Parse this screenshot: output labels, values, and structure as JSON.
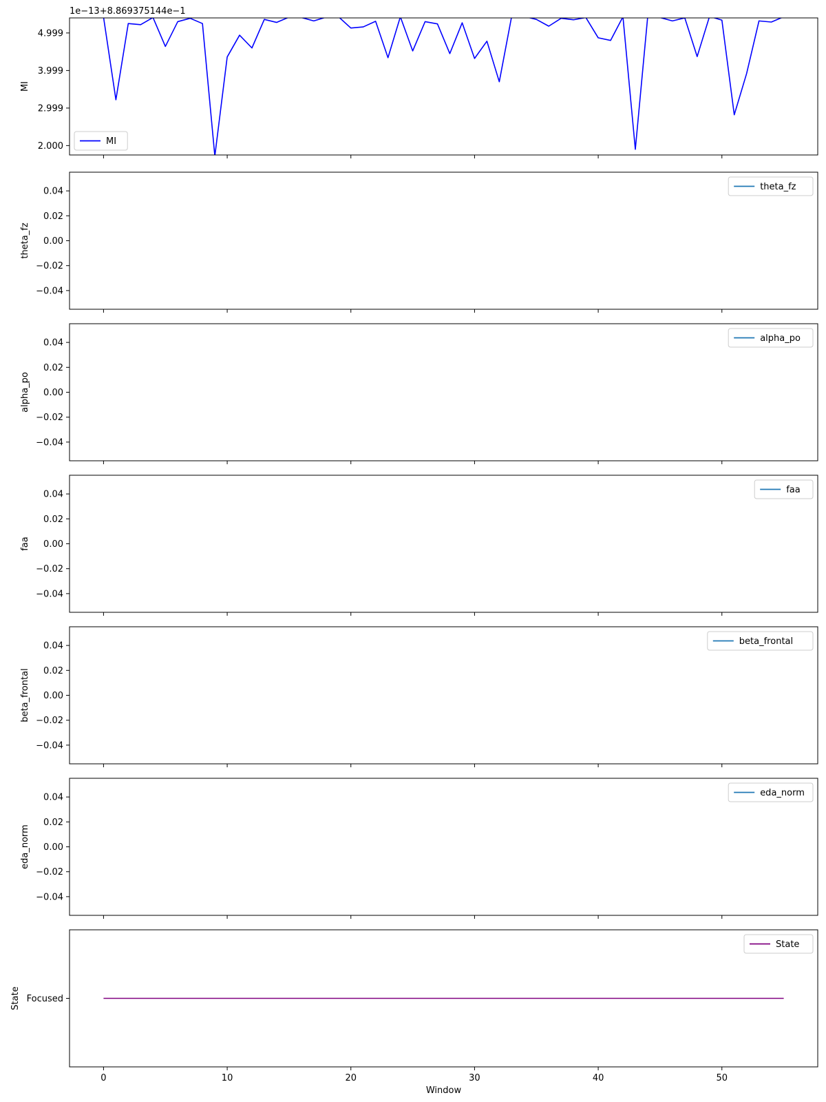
{
  "chart_data": [
    {
      "type": "line",
      "ylabel": "MI",
      "offset_text": "1e−13+8.869375144e−1",
      "ylim": [
        1.75,
        5.4
      ],
      "yticks": [
        2.0,
        2.999,
        3.999,
        4.999
      ],
      "ytick_labels": [
        "2.000",
        "2.999",
        "3.999",
        "4.999"
      ],
      "legend": {
        "position": "lower-left",
        "entries": [
          {
            "name": "MI",
            "color": "#0000ff"
          }
        ]
      },
      "series": [
        {
          "name": "MI",
          "color": "#0000ff",
          "x": [
            0,
            1,
            2,
            3,
            4,
            5,
            6,
            7,
            8,
            9,
            10,
            11,
            12,
            13,
            14,
            15,
            16,
            17,
            18,
            19,
            20,
            21,
            22,
            23,
            24,
            25,
            26,
            27,
            28,
            29,
            30,
            31,
            32,
            33,
            34,
            35,
            36,
            37,
            38,
            39,
            40,
            41,
            42,
            43,
            44,
            45,
            46,
            47,
            48,
            49,
            50,
            51,
            52,
            53,
            54,
            55
          ],
          "y": [
            5.42,
            3.22,
            5.25,
            5.22,
            5.41,
            4.64,
            5.3,
            5.39,
            5.25,
            1.72,
            4.36,
            4.94,
            4.6,
            5.36,
            5.28,
            5.42,
            5.41,
            5.32,
            5.42,
            5.43,
            5.13,
            5.16,
            5.31,
            4.34,
            5.43,
            4.52,
            5.3,
            5.24,
            4.45,
            5.27,
            4.32,
            4.78,
            3.7,
            5.44,
            5.44,
            5.36,
            5.18,
            5.39,
            5.35,
            5.41,
            4.87,
            4.8,
            5.43,
            1.9,
            5.43,
            5.41,
            5.32,
            5.4,
            4.37,
            5.44,
            5.34,
            2.82,
            3.92,
            5.32,
            5.29,
            5.43
          ]
        }
      ]
    },
    {
      "type": "line",
      "ylabel": "theta_fz",
      "ylim": [
        -0.055,
        0.055
      ],
      "yticks": [
        -0.04,
        -0.02,
        0.0,
        0.02,
        0.04
      ],
      "ytick_labels": [
        "−0.04",
        "−0.02",
        "0.00",
        "0.02",
        "0.04"
      ],
      "legend": {
        "position": "upper-right",
        "entries": [
          {
            "name": "theta_fz",
            "color": "#1f77b4"
          }
        ]
      },
      "series": []
    },
    {
      "type": "line",
      "ylabel": "alpha_po",
      "ylim": [
        -0.055,
        0.055
      ],
      "yticks": [
        -0.04,
        -0.02,
        0.0,
        0.02,
        0.04
      ],
      "ytick_labels": [
        "−0.04",
        "−0.02",
        "0.00",
        "0.02",
        "0.04"
      ],
      "legend": {
        "position": "upper-right",
        "entries": [
          {
            "name": "alpha_po",
            "color": "#1f77b4"
          }
        ]
      },
      "series": []
    },
    {
      "type": "line",
      "ylabel": "faa",
      "ylim": [
        -0.055,
        0.055
      ],
      "yticks": [
        -0.04,
        -0.02,
        0.0,
        0.02,
        0.04
      ],
      "ytick_labels": [
        "−0.04",
        "−0.02",
        "0.00",
        "0.02",
        "0.04"
      ],
      "legend": {
        "position": "upper-right",
        "entries": [
          {
            "name": "faa",
            "color": "#1f77b4"
          }
        ]
      },
      "series": []
    },
    {
      "type": "line",
      "ylabel": "beta_frontal",
      "ylim": [
        -0.055,
        0.055
      ],
      "yticks": [
        -0.04,
        -0.02,
        0.0,
        0.02,
        0.04
      ],
      "ytick_labels": [
        "−0.04",
        "−0.02",
        "0.00",
        "0.02",
        "0.04"
      ],
      "legend": {
        "position": "upper-right",
        "entries": [
          {
            "name": "beta_frontal",
            "color": "#1f77b4"
          }
        ]
      },
      "series": []
    },
    {
      "type": "line",
      "ylabel": "eda_norm",
      "ylim": [
        -0.055,
        0.055
      ],
      "yticks": [
        -0.04,
        -0.02,
        0.0,
        0.02,
        0.04
      ],
      "ytick_labels": [
        "−0.04",
        "−0.02",
        "0.00",
        "0.02",
        "0.04"
      ],
      "legend": {
        "position": "upper-right",
        "entries": [
          {
            "name": "eda_norm",
            "color": "#1f77b4"
          }
        ]
      },
      "series": []
    },
    {
      "type": "line",
      "ylabel": "State",
      "ylim": [
        -1,
        1
      ],
      "yticks": [
        0
      ],
      "ytick_labels": [
        "Focused"
      ],
      "xlabel": "Window",
      "legend": {
        "position": "upper-right",
        "entries": [
          {
            "name": "State",
            "color": "#800080"
          }
        ]
      },
      "series": [
        {
          "name": "State",
          "color": "#800080",
          "x": [
            0,
            55
          ],
          "y": [
            0,
            0
          ],
          "labels": [
            "Focused",
            "Focused"
          ]
        }
      ]
    }
  ],
  "shared_x": {
    "xlim": [
      -2.75,
      57.75
    ],
    "xticks": [
      0,
      10,
      20,
      30,
      40,
      50
    ],
    "xtick_labels": [
      "0",
      "10",
      "20",
      "30",
      "40",
      "50"
    ]
  }
}
